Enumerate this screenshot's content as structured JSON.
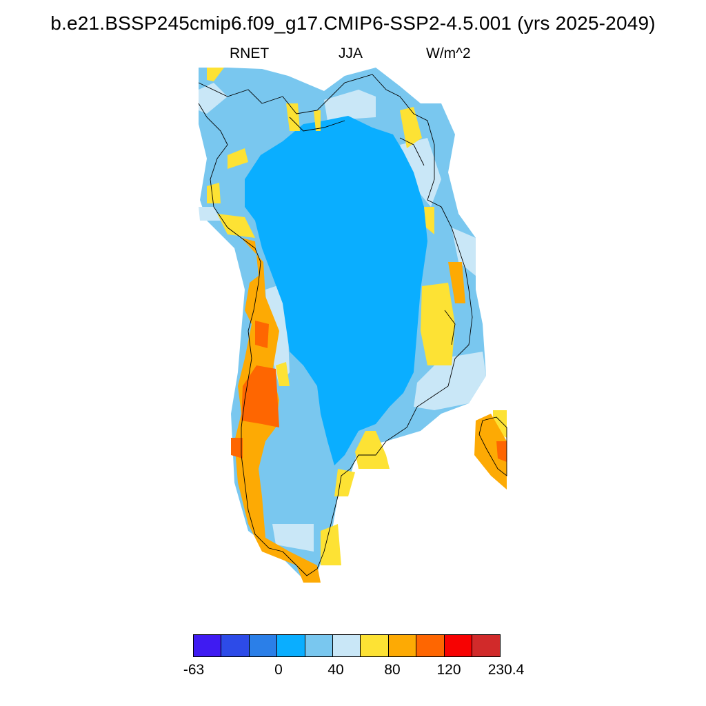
{
  "title": "b.e21.BSSP245cmip6.f09_g17.CMIP6-SSP2-4.5.001 (yrs 2025-2049)",
  "subtitle": {
    "left": "RNET",
    "center": "JJA",
    "right": "W/m^2"
  },
  "colorbar": {
    "colors": [
      "#3f1bf2",
      "#2d4be8",
      "#2b7fe8",
      "#0aaeff",
      "#79c7ef",
      "#c9e7f7",
      "#fde234",
      "#fdaa04",
      "#fe6601",
      "#f70202",
      "#d12a2a"
    ],
    "labels": [
      "-63",
      "0",
      "40",
      "80",
      "120",
      "230.4"
    ]
  },
  "map": {
    "region": "Greenland",
    "variable": "RNET",
    "season": "JJA",
    "units": "W/m^2"
  }
}
